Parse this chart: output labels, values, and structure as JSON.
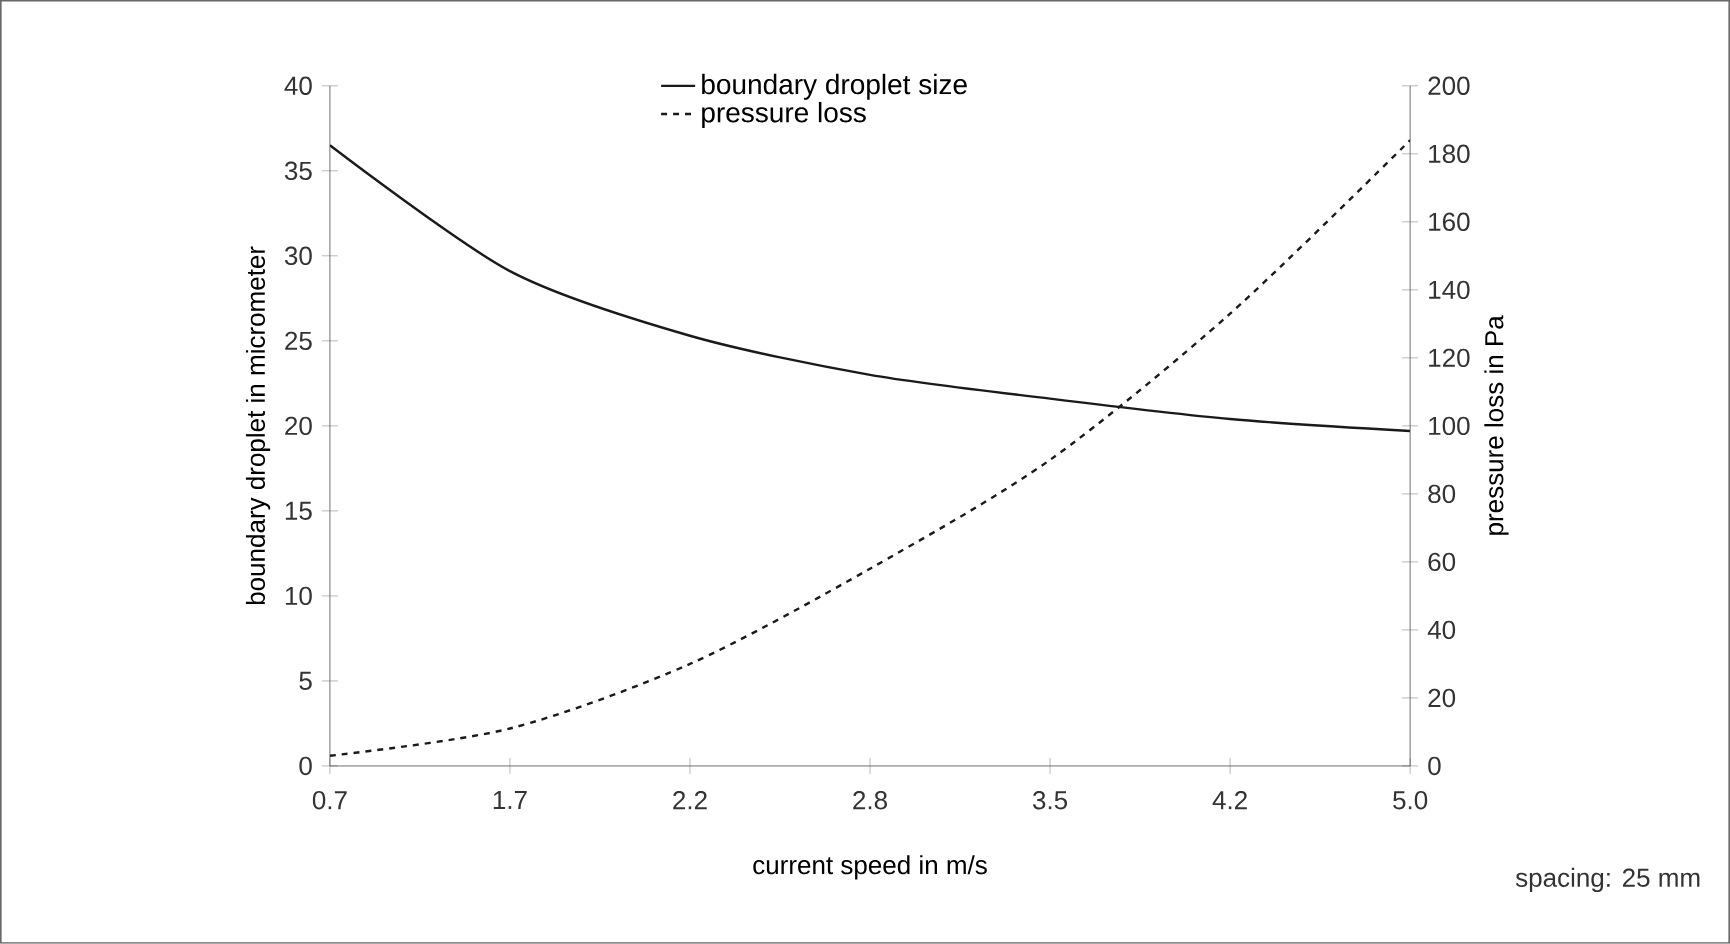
{
  "chart_data": {
    "type": "line",
    "xlabel": "current speed in m/s",
    "ylabel": "boundary droplet in micrometer",
    "y2label": "pressure loss in Pa",
    "categories": [
      "0.7",
      "1.7",
      "2.2",
      "2.8",
      "3.5",
      "4.2",
      "5.0"
    ],
    "series": [
      {
        "name": "boundary droplet size",
        "color": "#1a1a1a",
        "line_style": "solid",
        "values": [
          36.5,
          29.1,
          25.3,
          23.0,
          21.6,
          20.4,
          19.7
        ]
      },
      {
        "name": "pressure loss",
        "color": "#1a1a1a",
        "line_style": "dashed",
        "axis": "y2",
        "values": [
          3,
          11,
          30,
          58,
          90,
          133,
          184
        ]
      }
    ],
    "ylim": [
      0,
      40
    ],
    "yticks": [
      0,
      5,
      10,
      15,
      20,
      25,
      30,
      35,
      40
    ],
    "y2lim": [
      0,
      200
    ],
    "y2ticks": [
      0,
      20,
      40,
      60,
      80,
      100,
      120,
      140,
      160,
      180,
      200
    ],
    "legend": "top",
    "marker": "none",
    "grid": false,
    "annotations": [
      "spacing: 25 mm"
    ]
  }
}
